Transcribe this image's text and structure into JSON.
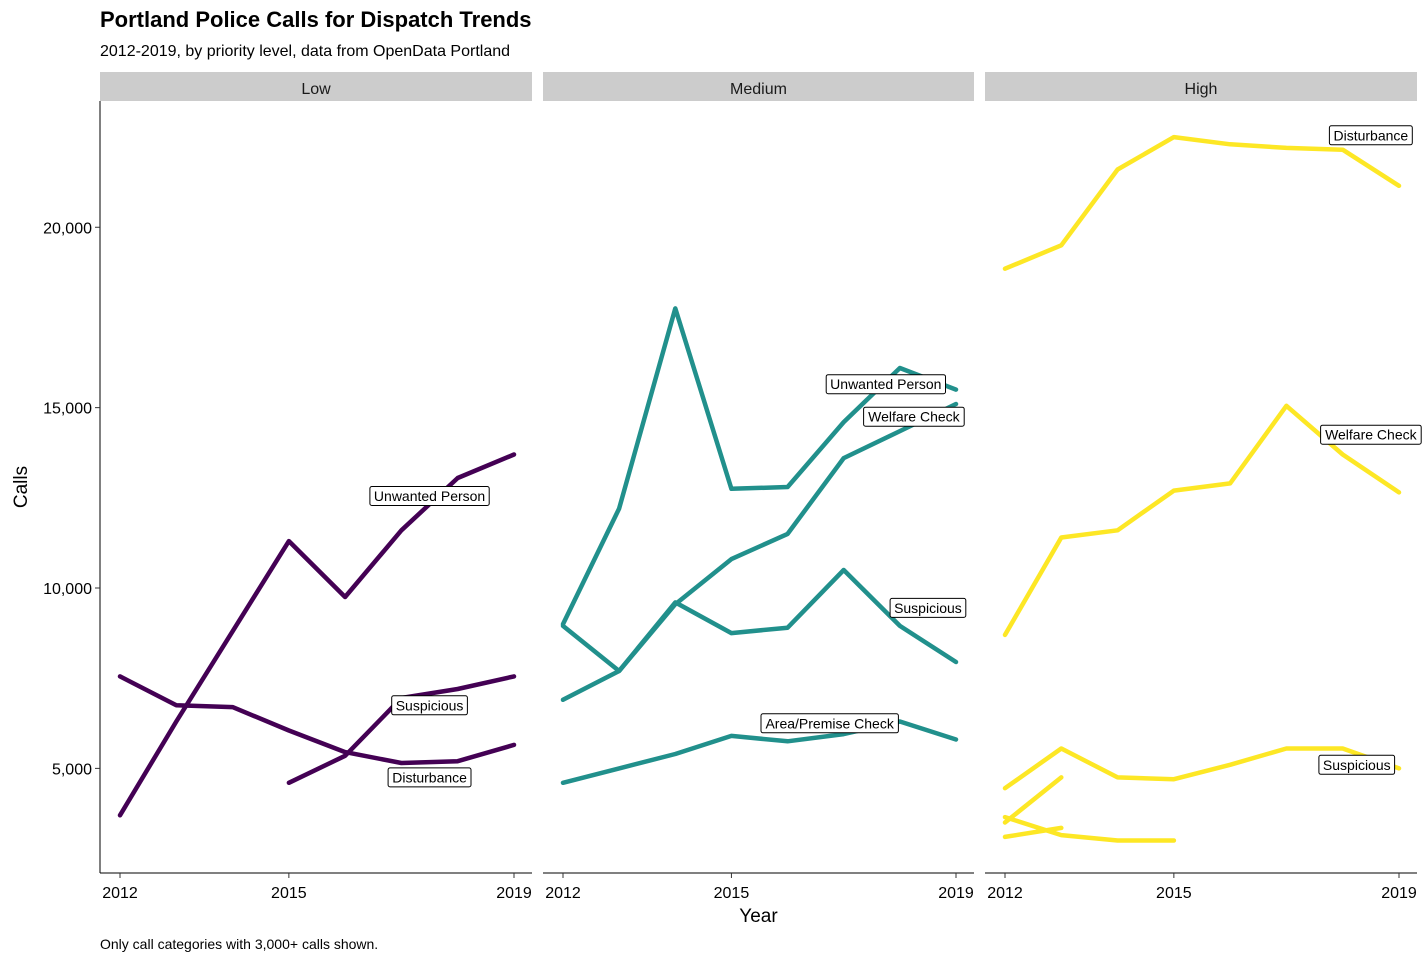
{
  "title": "Portland Police Calls for Dispatch Trends",
  "subtitle": "2012-2019, by priority level, data from OpenData Portland",
  "caption": "Only call categories with 3,000+ calls shown.",
  "chart_data": {
    "type": "line",
    "xlabel": "Year",
    "ylabel": "Calls",
    "xlim": [
      2012,
      2019
    ],
    "ylim": [
      2100,
      23500
    ],
    "x_ticks": [
      2012,
      2015,
      2019
    ],
    "y_ticks": [
      5000,
      10000,
      15000,
      20000
    ],
    "y_tick_labels": [
      "5,000",
      "10,000",
      "15,000",
      "20,000"
    ],
    "grid": false,
    "facets": [
      {
        "name": "Low",
        "color": "#440154",
        "series": [
          {
            "name": "Unwanted Person",
            "x": [
              2012,
              2013,
              2014,
              2015,
              2016,
              2017,
              2018,
              2019
            ],
            "values": [
              3700,
              6300,
              8800,
              11300,
              9750,
              11600,
              13050,
              13700
            ],
            "label": "Unwanted Person",
            "label_x": 2017.5,
            "label_y": 12550
          },
          {
            "name": "Disturbance",
            "x": [
              2012,
              2013,
              2014,
              2015,
              2016,
              2017,
              2018,
              2019
            ],
            "values": [
              7550,
              6750,
              6700,
              6050,
              5450,
              5150,
              5200,
              5650
            ],
            "label": "Disturbance",
            "label_x": 2017.5,
            "label_y": 4750
          },
          {
            "name": "Suspicious",
            "x": [
              2015,
              2016,
              2017,
              2018,
              2019
            ],
            "values": [
              4600,
              5350,
              6950,
              7200,
              7550
            ],
            "label": "Suspicious",
            "label_x": 2017.5,
            "label_y": 6750
          }
        ]
      },
      {
        "name": "Medium",
        "color": "#21908C",
        "series": [
          {
            "name": "Unwanted Person",
            "x": [
              2012,
              2013,
              2014,
              2015,
              2016,
              2017,
              2018,
              2019
            ],
            "values": [
              9000,
              12200,
              17750,
              12750,
              12800,
              14600,
              16100,
              15500
            ],
            "label": "Unwanted Person",
            "label_x": 2017.75,
            "label_y": 15650
          },
          {
            "name": "Welfare Check",
            "x": [
              2012,
              2013,
              2014,
              2015,
              2016,
              2017,
              2018,
              2019
            ],
            "values": [
              6900,
              7700,
              9550,
              10800,
              11500,
              13600,
              14350,
              15100
            ],
            "label": "Welfare Check",
            "label_x": 2018.25,
            "label_y": 14750
          },
          {
            "name": "Suspicious",
            "x": [
              2012,
              2013,
              2014,
              2015,
              2016,
              2017,
              2018,
              2019
            ],
            "values": [
              8950,
              7700,
              9600,
              8750,
              8900,
              10500,
              8950,
              7950
            ],
            "label": "Suspicious",
            "label_x": 2018.5,
            "label_y": 9450
          },
          {
            "name": "Area/Premise Check",
            "x": [
              2012,
              2013,
              2014,
              2015,
              2016,
              2017,
              2018,
              2019
            ],
            "values": [
              4600,
              5000,
              5400,
              5900,
              5750,
              5950,
              6300,
              5800
            ],
            "label": "Area/Premise Check",
            "label_x": 2016.75,
            "label_y": 6250
          }
        ]
      },
      {
        "name": "High",
        "color": "#FDE725",
        "series": [
          {
            "name": "Disturbance",
            "x": [
              2012,
              2013,
              2014,
              2015,
              2016,
              2017,
              2018,
              2019
            ],
            "values": [
              18850,
              19500,
              21600,
              22500,
              22300,
              22200,
              22150,
              21150
            ],
            "label": "Disturbance",
            "label_x": 2018.5,
            "label_y": 22550
          },
          {
            "name": "Welfare Check",
            "x": [
              2012,
              2013,
              2014,
              2015,
              2016,
              2017,
              2018,
              2019
            ],
            "values": [
              8700,
              11400,
              11600,
              12700,
              12900,
              15050,
              13700,
              12650
            ],
            "label": "Welfare Check",
            "label_x": 2018.5,
            "label_y": 14250
          },
          {
            "name": "Suspicious",
            "x": [
              2012,
              2013,
              2014,
              2015,
              2016,
              2017,
              2018,
              2019
            ],
            "values": [
              4450,
              5550,
              4750,
              4700,
              5100,
              5550,
              5550,
              5000
            ],
            "label": "Suspicious",
            "label_x": 2018.25,
            "label_y": 5100
          },
          {
            "name": "Unlabeled A",
            "x": [
              2012,
              2013
            ],
            "values": [
              3500,
              4750
            ]
          },
          {
            "name": "Unlabeled B",
            "x": [
              2012,
              2013,
              2014,
              2015
            ],
            "values": [
              3650,
              3150,
              3000,
              3000
            ]
          },
          {
            "name": "Unlabeled C",
            "x": [
              2012,
              2013
            ],
            "values": [
              3100,
              3350
            ]
          }
        ]
      }
    ]
  }
}
